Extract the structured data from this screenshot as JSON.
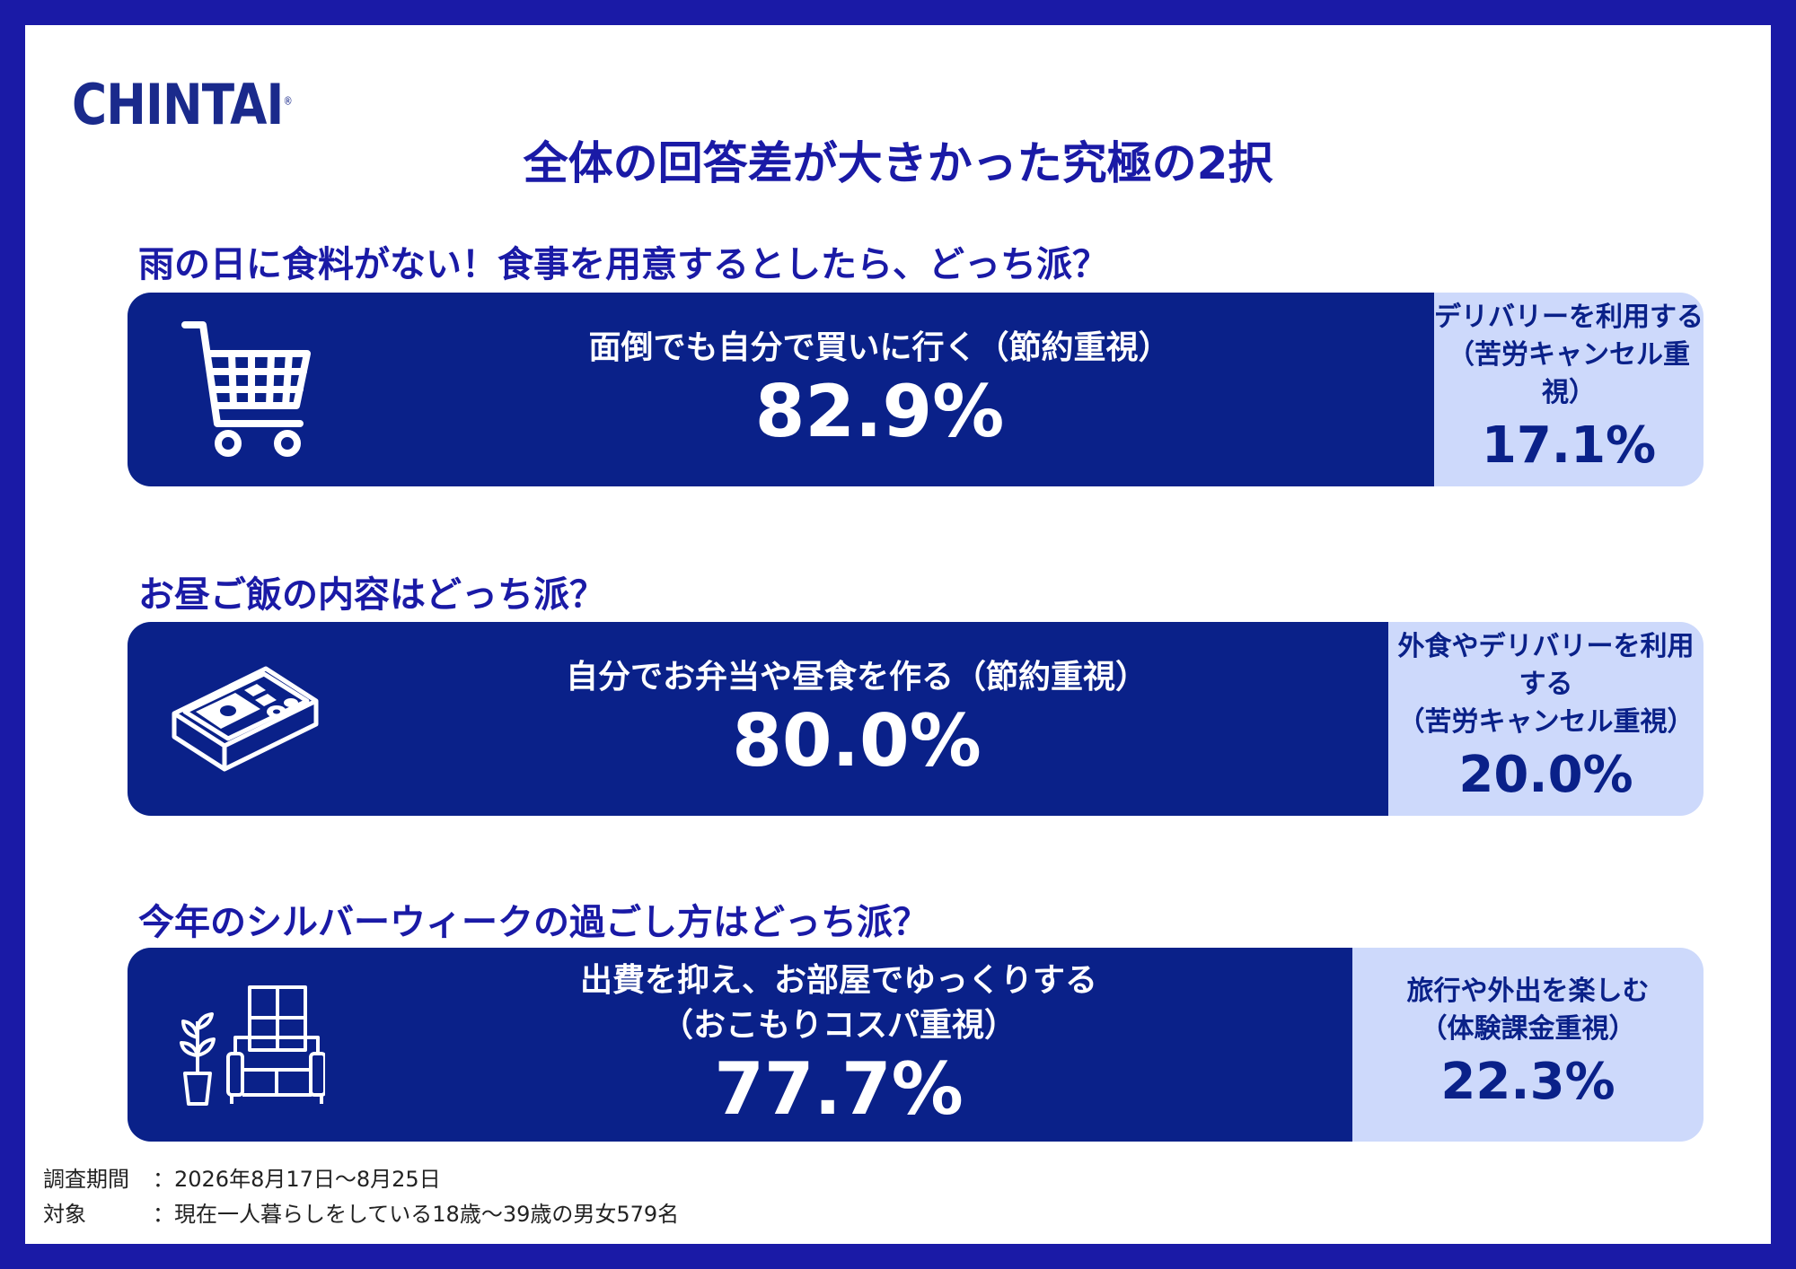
{
  "brand": {
    "logo": "CHINTAI",
    "mark": "®"
  },
  "colors": {
    "frame": "#1a1aa6",
    "major": "#0a2189",
    "minor": "#cdd9fb",
    "text_title": "#1a1aa6"
  },
  "title": "全体の回答差が大きかった究極の2択",
  "chart_data": {
    "type": "bar",
    "orientation": "horizontal-stacked",
    "ylim": [
      0,
      100
    ],
    "questions": [
      {
        "question": "雨の日に食料がない！食事を用意するとしたら、どっち派？",
        "icon": "shopping-cart-icon",
        "options": [
          {
            "label": "面倒でも自分で買いに行く（節約重視）",
            "value": 82.9,
            "value_label": "82.9%"
          },
          {
            "label": "デリバリーを利用する\n（苦労キャンセル重視）",
            "value": 17.1,
            "value_label": "17.1%"
          }
        ]
      },
      {
        "question": "お昼ご飯の内容はどっち派？",
        "icon": "bento-box-icon",
        "options": [
          {
            "label": "自分でお弁当や昼食を作る（節約重視）",
            "value": 80.0,
            "value_label": "80.0%"
          },
          {
            "label": "外食やデリバリーを利用する\n（苦労キャンセル重視）",
            "value": 20.0,
            "value_label": "20.0%"
          }
        ]
      },
      {
        "question": "今年のシルバーウィークの過ごし方はどっち派？",
        "icon": "sofa-room-icon",
        "options": [
          {
            "label": "出費を抑え、お部屋でゆっくりする\n（おこもりコスパ重視）",
            "value": 77.7,
            "value_label": "77.7%"
          },
          {
            "label": "旅行や外出を楽しむ\n（体験課金重視）",
            "value": 22.3,
            "value_label": "22.3%"
          }
        ]
      }
    ]
  },
  "footer": {
    "period_key": "調査期間",
    "period_value": "：2026年8月17日〜8月25日",
    "target_key": "対象",
    "target_value": "：現在一人暮らしをしている18歳〜39歳の男女579名"
  }
}
